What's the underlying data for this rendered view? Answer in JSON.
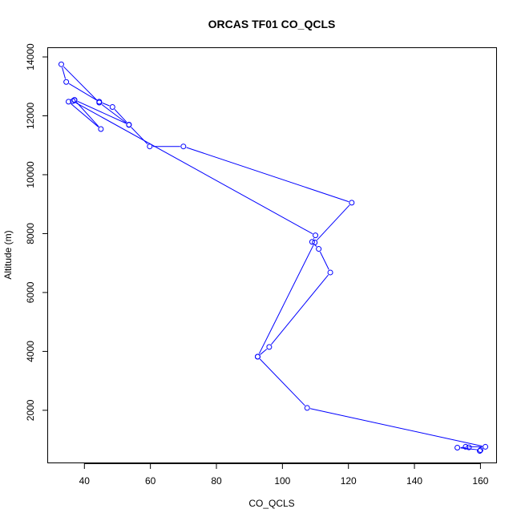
{
  "chart_data": {
    "type": "line",
    "title": "ORCAS TF01 CO_QCLS",
    "xlabel": "CO_QCLS",
    "ylabel": "Altitude (m)",
    "xlim": [
      29,
      165
    ],
    "ylim": [
      200,
      14300
    ],
    "x_ticks": [
      40,
      60,
      80,
      100,
      120,
      140,
      160
    ],
    "y_ticks": [
      2000,
      4000,
      6000,
      8000,
      10000,
      12000,
      14000
    ],
    "grid": false,
    "legend": "none",
    "line_color": "#0000ff",
    "marker": "open-circle",
    "series": [
      {
        "points": [
          [
            159.8,
            620
          ],
          [
            160.0,
            650
          ],
          [
            153.0,
            730
          ],
          [
            156.5,
            740
          ],
          [
            155.5,
            760
          ],
          [
            161.5,
            760
          ],
          [
            107.5,
            2080
          ],
          [
            92.5,
            3820
          ],
          [
            96.0,
            4150
          ],
          [
            114.5,
            6680
          ],
          [
            111.0,
            7480
          ],
          [
            109.0,
            7720
          ],
          [
            110.0,
            7940
          ],
          [
            36.5,
            12500
          ],
          [
            37.0,
            12530
          ],
          [
            35.2,
            12480
          ],
          [
            45.0,
            11550
          ],
          [
            37.0,
            12540
          ],
          [
            53.5,
            11700
          ],
          [
            48.5,
            12300
          ],
          [
            44.5,
            12480
          ],
          [
            34.5,
            13150
          ],
          [
            33.0,
            13750
          ],
          [
            44.5,
            12450
          ],
          [
            53.5,
            11690
          ],
          [
            59.8,
            10960
          ],
          [
            70.0,
            10960
          ],
          [
            121.0,
            9050
          ],
          [
            109.8,
            7700
          ],
          [
            92.5,
            3820
          ]
        ]
      }
    ]
  }
}
